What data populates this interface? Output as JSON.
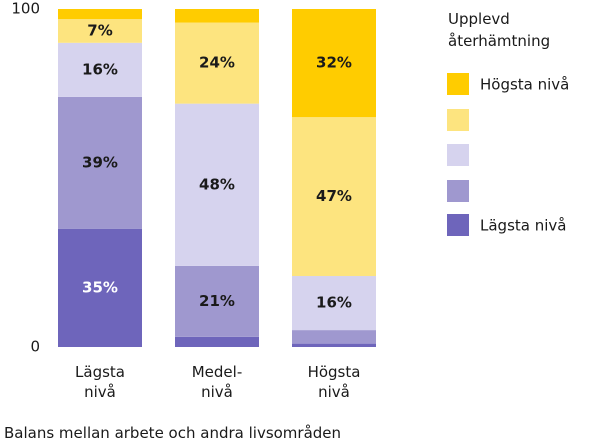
{
  "chart_data": {
    "type": "stacked-bar",
    "x_label": "Balans mellan arbete och andra livsområden",
    "legend_title": "Upplevd återhämtning",
    "categories": [
      "Lägsta\nnivå",
      "Medel-\nnivå",
      "Högsta\nnivå"
    ],
    "series": [
      {
        "name": "Lägsta nivå",
        "color": "#6e65bb",
        "values": [
          35,
          3,
          1
        ],
        "value_labels": [
          "35%",
          null,
          null
        ]
      },
      {
        "name": null,
        "color": "#9f98cf",
        "values": [
          39,
          21,
          4
        ],
        "value_labels": [
          "39%",
          "21%",
          null
        ]
      },
      {
        "name": null,
        "color": "#d6d3ee",
        "values": [
          16,
          48,
          16
        ],
        "value_labels": [
          "16%",
          "48%",
          "16%"
        ]
      },
      {
        "name": null,
        "color": "#fde47f",
        "values": [
          7,
          24,
          47
        ],
        "value_labels": [
          "7%",
          "24%",
          "47%"
        ]
      },
      {
        "name": "Högsta nivå",
        "color": "#ffcc00",
        "values": [
          3,
          4,
          32
        ],
        "value_labels": [
          null,
          null,
          "32%"
        ]
      }
    ],
    "ylim": [
      0,
      100
    ],
    "yticks": [
      0,
      100
    ],
    "legend": "right"
  }
}
